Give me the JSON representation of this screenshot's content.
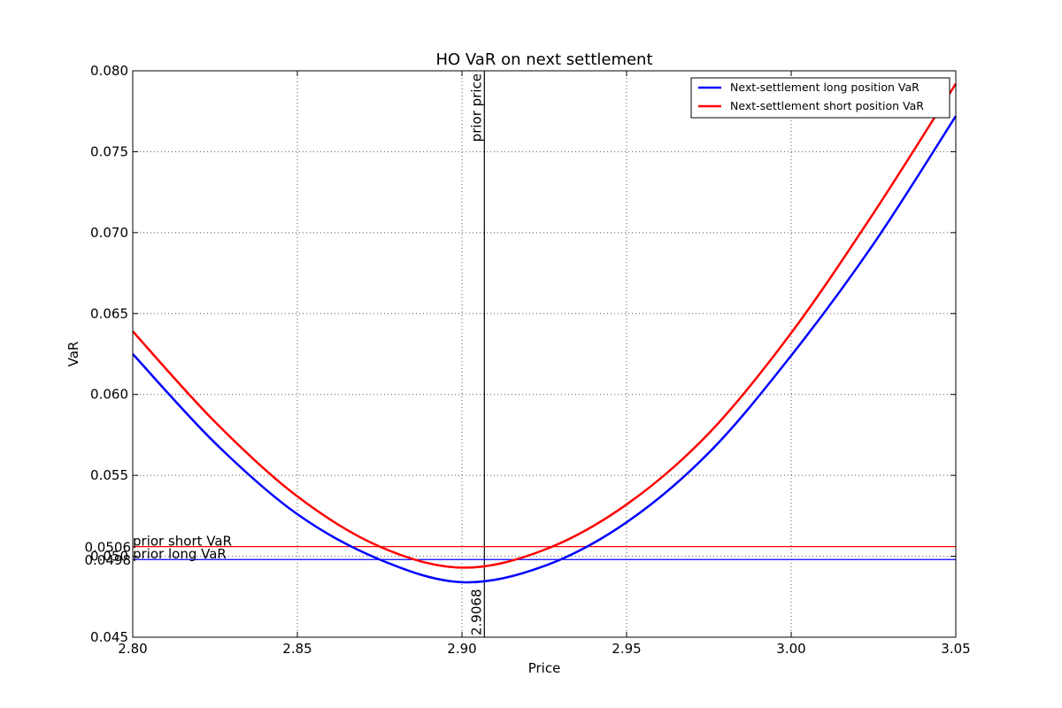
{
  "chart_data": {
    "type": "line",
    "title": "HO VaR on next settlement",
    "xlabel": "Price",
    "ylabel": "VaR",
    "xlim": [
      2.8,
      3.05
    ],
    "ylim": [
      0.045,
      0.08
    ],
    "grid": true,
    "legend_position": "top-right",
    "x_ticks": [
      "2.80",
      "2.85",
      "2.90",
      "2.95",
      "3.00",
      "3.05"
    ],
    "y_ticks": [
      "0.045",
      "0.050",
      "0.055",
      "0.060",
      "0.065",
      "0.070",
      "0.075",
      "0.080"
    ],
    "x": [
      2.8,
      2.825,
      2.85,
      2.875,
      2.9,
      2.925,
      2.95,
      2.975,
      3.0,
      3.025,
      3.05
    ],
    "series": [
      {
        "name": "Next-settlement long position VaR",
        "color": "#0000ff",
        "values": [
          0.0625,
          0.057,
          0.0526,
          0.0498,
          0.0484,
          0.0494,
          0.0521,
          0.0564,
          0.0624,
          0.0693,
          0.0772
        ]
      },
      {
        "name": "Next-settlement short position VaR",
        "color": "#ff0000",
        "values": [
          0.0639,
          0.0583,
          0.0537,
          0.0506,
          0.0493,
          0.0504,
          0.0532,
          0.0576,
          0.0638,
          0.0712,
          0.0792
        ]
      }
    ],
    "reference_lines": {
      "prior_price": {
        "x": 2.9068,
        "label": "prior price",
        "value_label": "2.9068",
        "color": "#000000"
      },
      "prior_long_var": {
        "y": 0.0498,
        "label": "prior long VaR",
        "value_label": "0.0498",
        "color": "#0000ff"
      },
      "prior_short_var": {
        "y": 0.0506,
        "label": "prior short VaR",
        "value_label": "0.0506",
        "color": "#ff0000"
      }
    }
  }
}
